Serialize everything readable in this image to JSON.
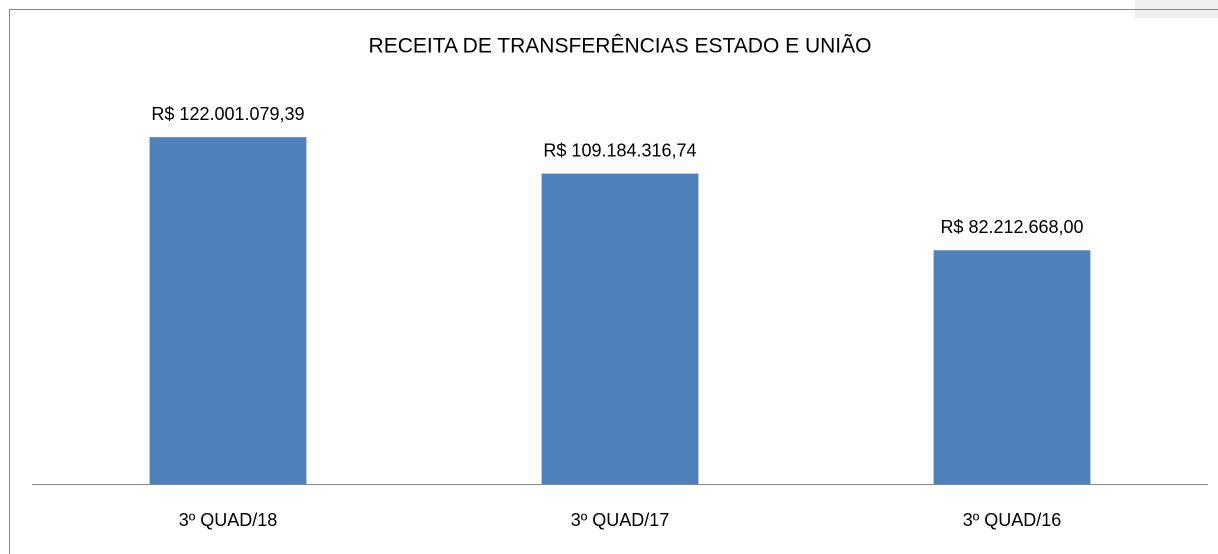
{
  "chart_data": {
    "type": "bar",
    "title": "RECEITA DE TRANSFERÊNCIAS ESTADO E UNIÃO",
    "categories": [
      "3º QUAD/18",
      "3º QUAD/17",
      "3º QUAD/16"
    ],
    "values": [
      122001079.39,
      109184316.74,
      82212668.0
    ],
    "value_labels": [
      "R$ 122.001.079,39",
      "R$ 109.184.316,74",
      "R$ 82.212.668,00"
    ],
    "color": "#4f81bd",
    "ylim": [
      0,
      140000000
    ]
  }
}
